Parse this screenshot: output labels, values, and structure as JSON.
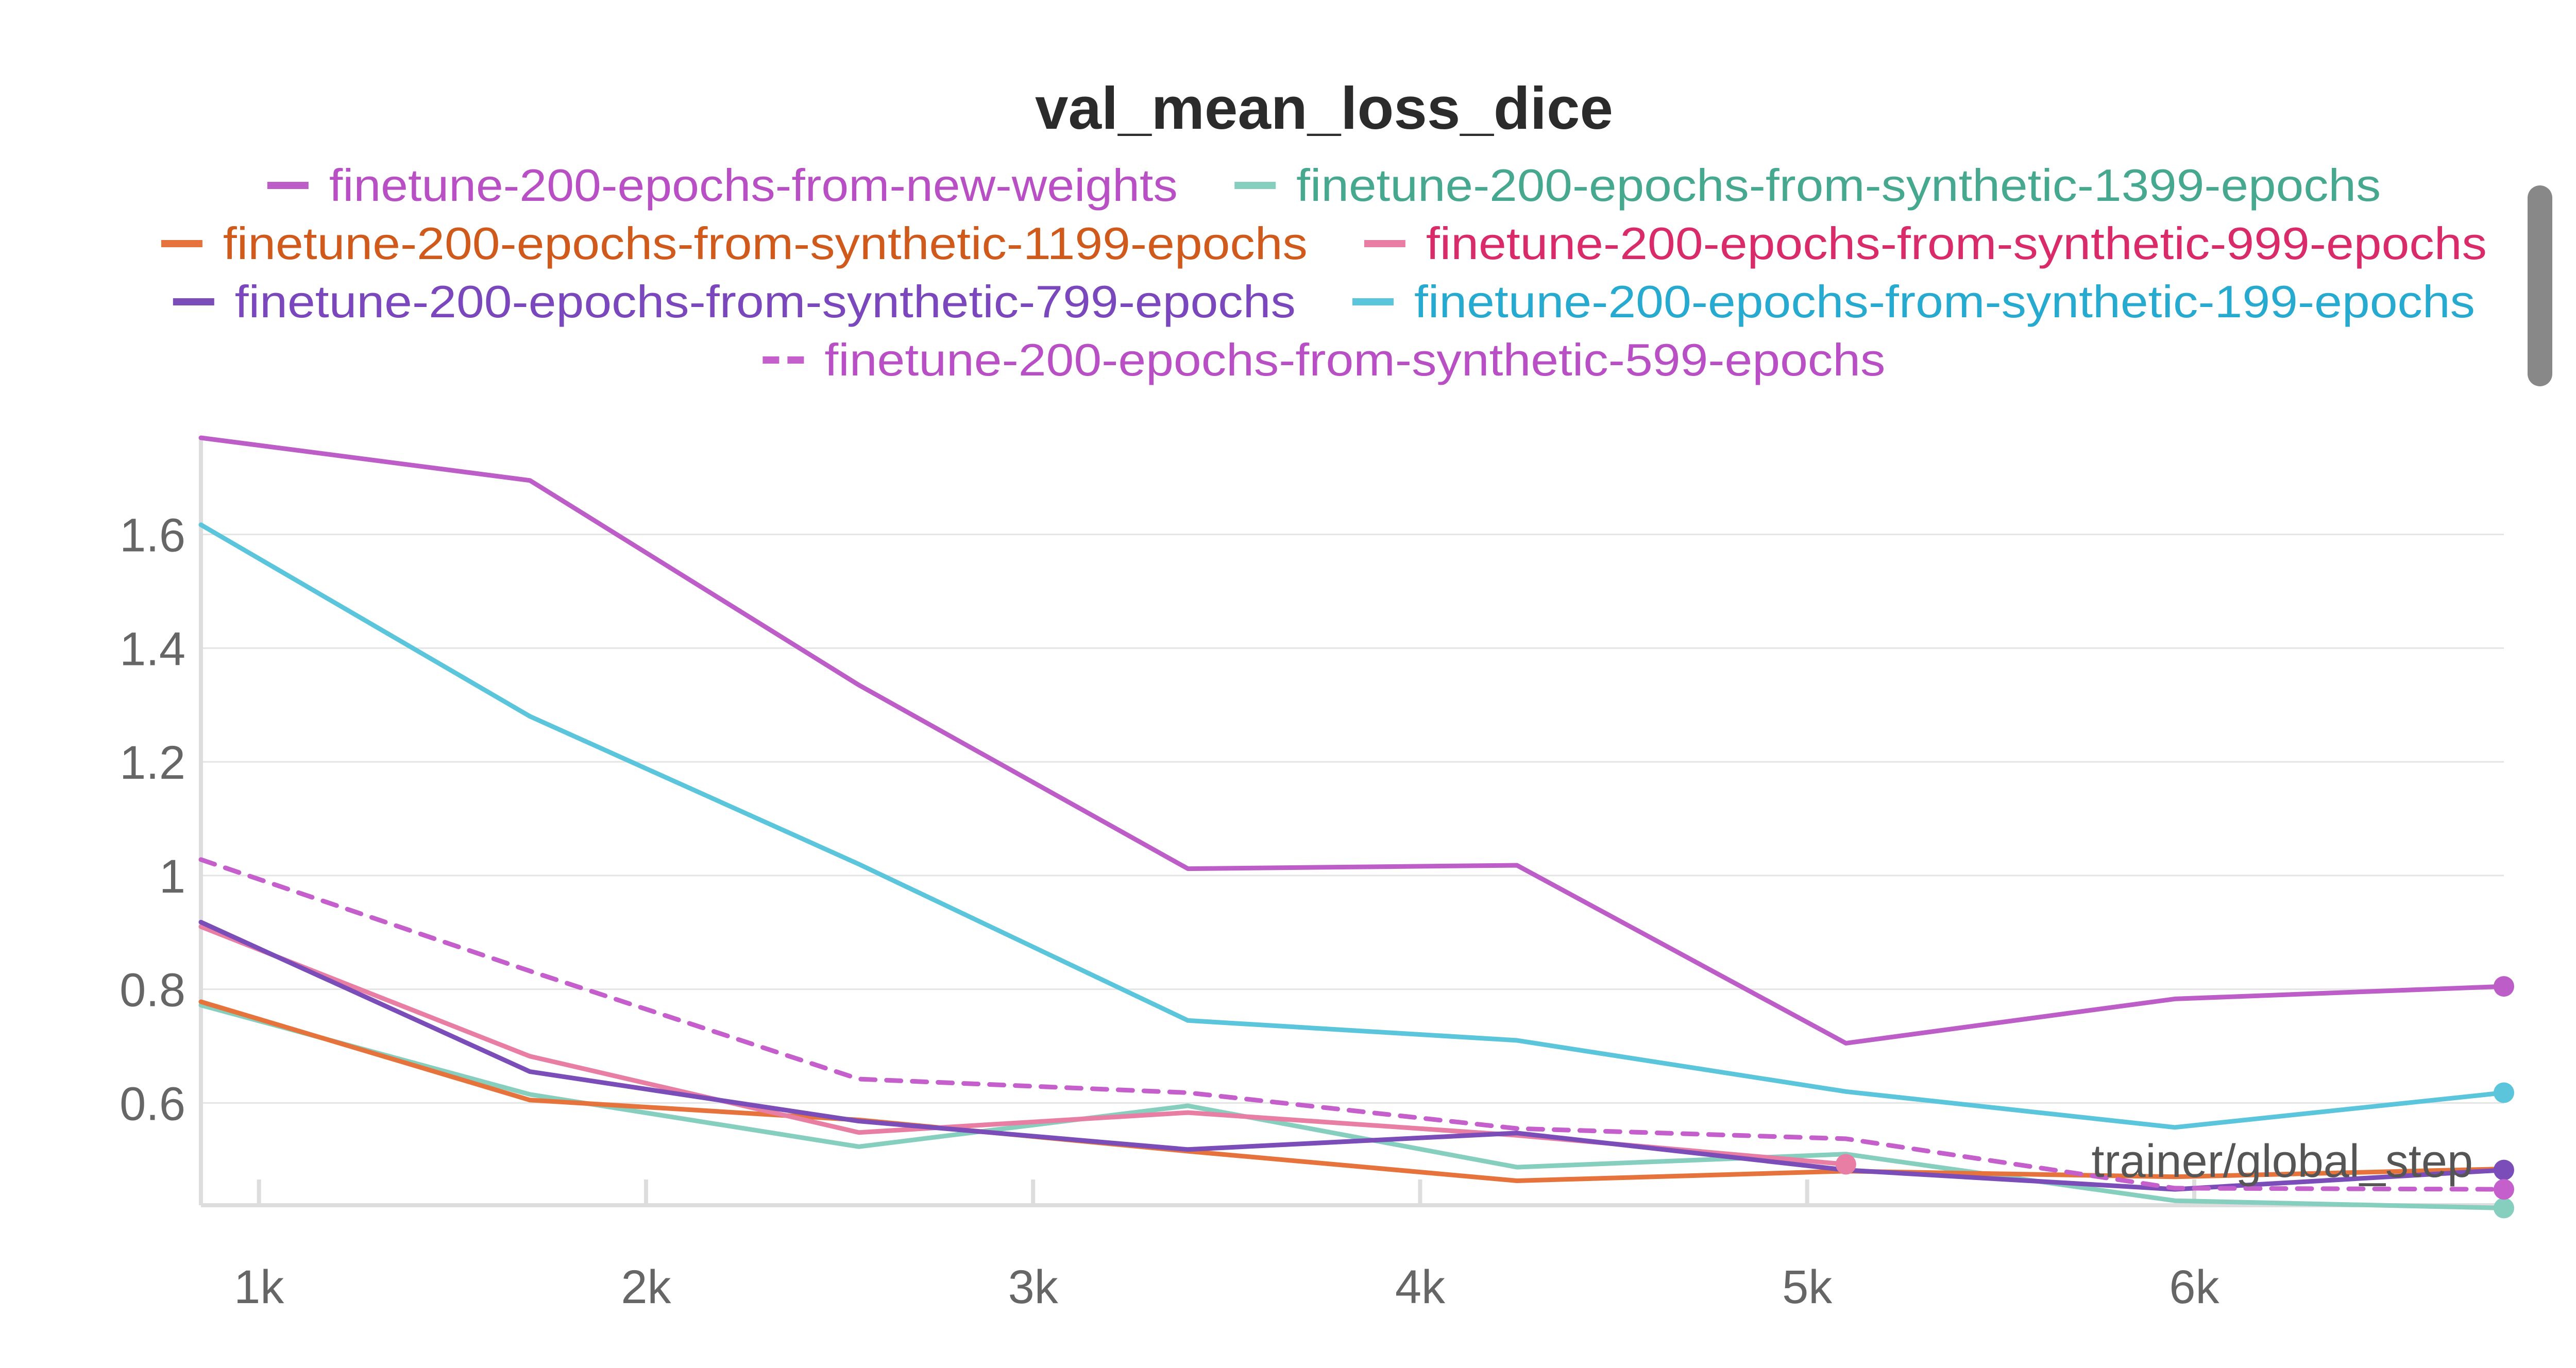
{
  "chart_data": {
    "type": "line",
    "title": "val_mean_loss_dice",
    "xlabel": "trainer/global_step",
    "ylabel": "",
    "xlim": [
      850,
      6800
    ],
    "ylim": [
      0.42,
      1.77
    ],
    "x_ticks": [
      1000,
      2000,
      3000,
      4000,
      5000,
      6000
    ],
    "x_tick_labels": [
      "1k",
      "2k",
      "3k",
      "4k",
      "5k",
      "6k"
    ],
    "y_ticks": [
      0.6,
      0.8,
      1.0,
      1.2,
      1.4,
      1.6
    ],
    "y_tick_labels": [
      "0.6",
      "0.8",
      "1",
      "1.2",
      "1.4",
      "1.6"
    ],
    "grid": true,
    "legend_position": "top",
    "series": [
      {
        "name": "finetune-200-epochs-from-new-weights",
        "color": "#bd5ec8",
        "label_color": "#b94fc4",
        "dashed": false,
        "end_marker": true,
        "x": [
          850,
          1700,
          2550,
          3400,
          4250,
          5100,
          5950,
          6800
        ],
        "y": [
          1.77,
          1.695,
          1.335,
          1.012,
          1.018,
          0.705,
          0.783,
          0.805
        ]
      },
      {
        "name": "finetune-200-epochs-from-synthetic-1399-epochs",
        "color": "#86cfbe",
        "label_color": "#45a88f",
        "dashed": false,
        "end_marker": true,
        "x": [
          850,
          1700,
          2550,
          3400,
          4250,
          5100,
          5950,
          6800
        ],
        "y": [
          0.772,
          0.615,
          0.523,
          0.595,
          0.487,
          0.51,
          0.428,
          0.415
        ]
      },
      {
        "name": "finetune-200-epochs-from-synthetic-1199-epochs",
        "color": "#e6733c",
        "label_color": "#cf5a1c",
        "dashed": false,
        "end_marker": false,
        "x": [
          850,
          1700,
          2550,
          3400,
          4250,
          5100,
          5950,
          6800
        ],
        "y": [
          0.778,
          0.605,
          0.57,
          0.515,
          0.463,
          0.48,
          0.47,
          0.484
        ]
      },
      {
        "name": "finetune-200-epochs-from-synthetic-999-epochs",
        "color": "#e87ea4",
        "label_color": "#d92b6a",
        "dashed": false,
        "end_marker": true,
        "x": [
          850,
          1700,
          2550,
          3400,
          4250,
          5100
        ],
        "y": [
          0.91,
          0.682,
          0.548,
          0.583,
          0.543,
          0.492
        ]
      },
      {
        "name": "finetune-200-epochs-from-synthetic-799-epochs",
        "color": "#7a4db8",
        "label_color": "#7a48bc",
        "dashed": false,
        "end_marker": true,
        "x": [
          850,
          1700,
          2550,
          3400,
          4250,
          5100,
          5950,
          6800
        ],
        "y": [
          0.918,
          0.655,
          0.568,
          0.518,
          0.547,
          0.482,
          0.448,
          0.482
        ]
      },
      {
        "name": "finetune-200-epochs-from-synthetic-199-epochs",
        "color": "#5bc5dc",
        "label_color": "#27aad0",
        "dashed": false,
        "end_marker": true,
        "x": [
          850,
          1700,
          2550,
          3400,
          4250,
          5100,
          5950,
          6800
        ],
        "y": [
          1.617,
          1.28,
          1.02,
          0.745,
          0.71,
          0.62,
          0.557,
          0.618
        ]
      },
      {
        "name": "finetune-200-epochs-from-synthetic-599-epochs",
        "color": "#c45fcc",
        "label_color": "#b94fc4",
        "dashed": true,
        "end_marker": true,
        "x": [
          850,
          1700,
          2550,
          3400,
          4250,
          5100,
          5950,
          6800
        ],
        "y": [
          1.028,
          0.832,
          0.642,
          0.618,
          0.555,
          0.537,
          0.45,
          0.448
        ]
      }
    ]
  }
}
